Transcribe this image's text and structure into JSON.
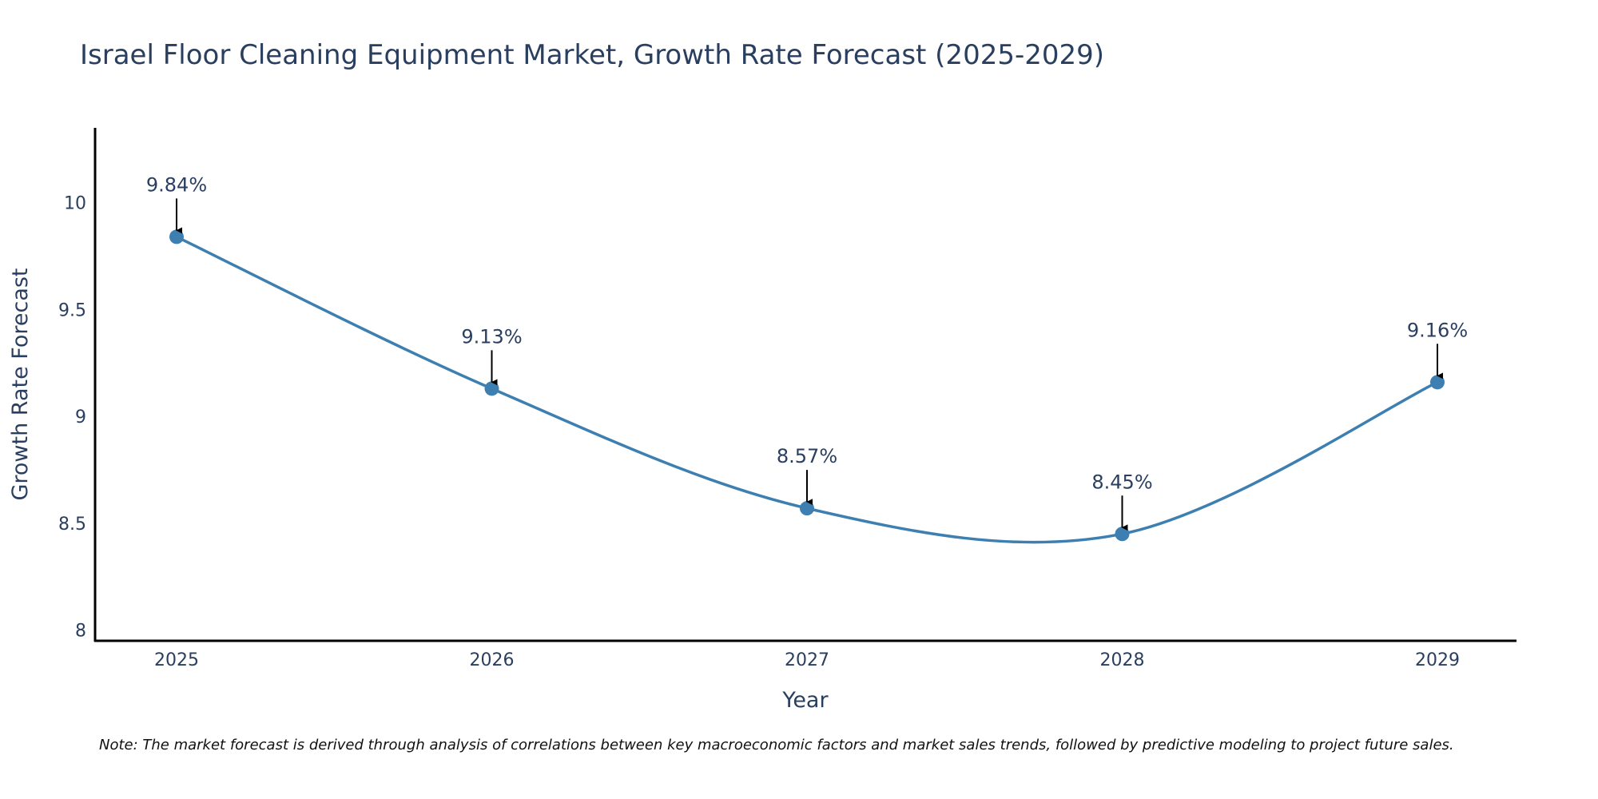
{
  "chart_data": {
    "type": "line",
    "title": "Israel Floor Cleaning Equipment Market, Growth Rate Forecast (2025-2029)",
    "xlabel": "Year",
    "ylabel": "Growth Rate Forecast",
    "categories": [
      "2025",
      "2026",
      "2027",
      "2028",
      "2029"
    ],
    "values": [
      9.84,
      9.13,
      8.57,
      8.45,
      9.16
    ],
    "data_labels": [
      "9.84%",
      "9.13%",
      "8.57%",
      "8.45%",
      "9.16%"
    ],
    "ylim": [
      7.95,
      10.35
    ],
    "yticks": [
      8,
      8.5,
      9,
      9.5,
      10
    ],
    "ytick_labels": [
      "8",
      "8.5",
      "9",
      "9.5",
      "10"
    ],
    "grid": false,
    "line_color": "#3d7fb0",
    "marker_color": "#3d7fb0",
    "arrow_color": "#000000",
    "note": "Note: The market forecast is derived through analysis of correlations between key macroeconomic factors and market sales trends, followed by predictive modeling to project future sales."
  }
}
